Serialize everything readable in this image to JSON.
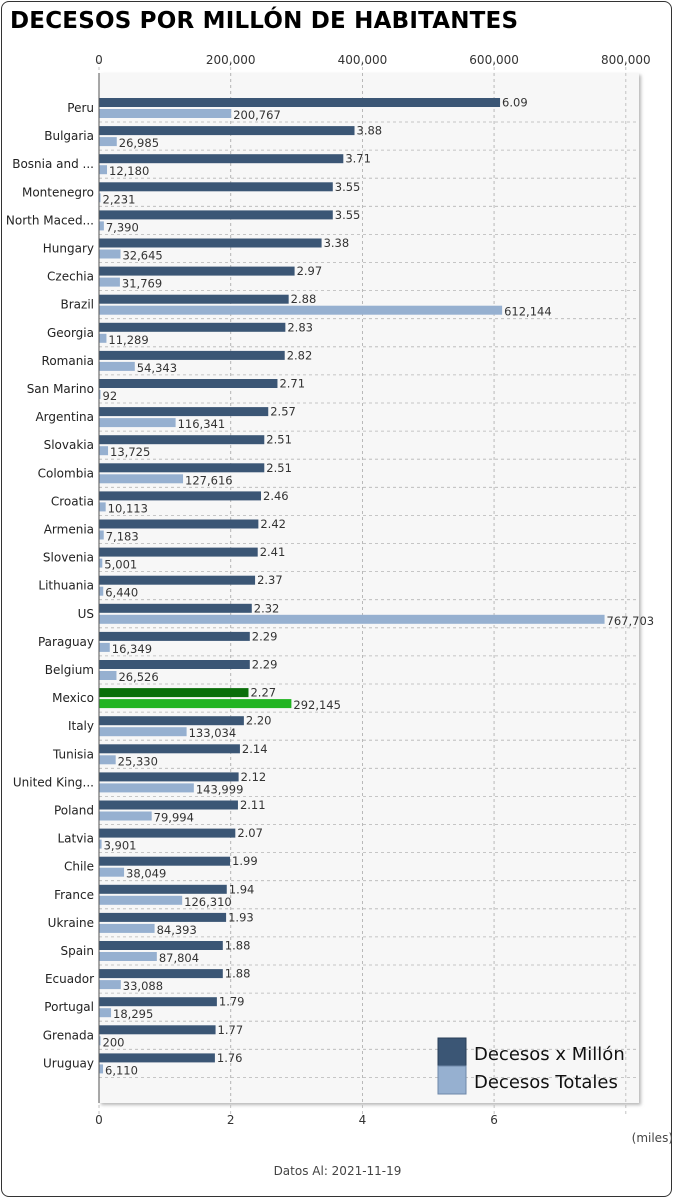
{
  "title": "DECESOS POR MILLÓN DE HABITANTES",
  "footer": "Datos Al: 2021-11-19",
  "colors": {
    "per_million": "#3b5675",
    "total": "#96b0d0",
    "highlight_per_million": "#0a6e0a",
    "highlight_total": "#21b421",
    "plot_bg": "#f7f7f7",
    "grid": "#b5b5b5"
  },
  "chart_data": {
    "type": "bar",
    "orientation": "horizontal",
    "highlight": "Mexico",
    "categories": [
      "Peru",
      "Bulgaria",
      "Bosnia and ...",
      "Montenegro",
      "North Maced...",
      "Hungary",
      "Czechia",
      "Brazil",
      "Georgia",
      "Romania",
      "San Marino",
      "Argentina",
      "Slovakia",
      "Colombia",
      "Croatia",
      "Armenia",
      "Slovenia",
      "Lithuania",
      "US",
      "Paraguay",
      "Belgium",
      "Mexico",
      "Italy",
      "Tunisia",
      "United King...",
      "Poland",
      "Latvia",
      "Chile",
      "France",
      "Ukraine",
      "Spain",
      "Ecuador",
      "Portugal",
      "Grenada",
      "Uruguay"
    ],
    "series": [
      {
        "name": "Decesos x Millón",
        "axis": "bottom",
        "values": [
          6.09,
          3.88,
          3.71,
          3.55,
          3.55,
          3.38,
          2.97,
          2.88,
          2.83,
          2.82,
          2.71,
          2.57,
          2.51,
          2.51,
          2.46,
          2.42,
          2.41,
          2.37,
          2.32,
          2.29,
          2.29,
          2.27,
          2.2,
          2.14,
          2.12,
          2.11,
          2.07,
          1.99,
          1.94,
          1.93,
          1.88,
          1.88,
          1.79,
          1.77,
          1.76
        ],
        "labels": [
          "6.09",
          "3.88",
          "3.71",
          "3.55",
          "3.55",
          "3.38",
          "2.97",
          "2.88",
          "2.83",
          "2.82",
          "2.71",
          "2.57",
          "2.51",
          "2.51",
          "2.46",
          "2.42",
          "2.41",
          "2.37",
          "2.32",
          "2.29",
          "2.29",
          "2.27",
          "2.20",
          "2.14",
          "2.12",
          "2.11",
          "2.07",
          "1.99",
          "1.94",
          "1.93",
          "1.88",
          "1.88",
          "1.79",
          "1.77",
          "1.76"
        ]
      },
      {
        "name": "Decesos Totales",
        "axis": "top",
        "values": [
          200767,
          26985,
          12180,
          2231,
          7390,
          32645,
          31769,
          612144,
          11289,
          54343,
          92,
          116341,
          13725,
          127616,
          10113,
          7183,
          5001,
          6440,
          767703,
          16349,
          26526,
          292145,
          133034,
          25330,
          143999,
          79994,
          3901,
          38049,
          126310,
          84393,
          87804,
          33088,
          18295,
          200,
          6110
        ],
        "labels": [
          "200,767",
          "26,985",
          "12,180",
          "2,231",
          "7,390",
          "32,645",
          "31,769",
          "612,144",
          "11,289",
          "54,343",
          "92",
          "116,341",
          "13,725",
          "127,616",
          "10,113",
          "7,183",
          "5,001",
          "6,440",
          "767,703",
          "16,349",
          "26,526",
          "292,145",
          "133,034",
          "25,330",
          "143,999",
          "79,994",
          "3,901",
          "38,049",
          "126,310",
          "84,393",
          "87,804",
          "33,088",
          "18,295",
          "200",
          "6,110"
        ]
      }
    ],
    "top_axis": {
      "range": [
        0,
        820000
      ],
      "ticks": [
        0,
        200000,
        400000,
        600000,
        800000
      ],
      "tick_labels": [
        "0",
        "200,000",
        "400,000",
        "600,000",
        "800,000"
      ]
    },
    "bottom_axis": {
      "range": [
        0,
        8.2
      ],
      "ticks": [
        0,
        2,
        4,
        6
      ],
      "tick_labels": [
        "0",
        "2",
        "4",
        "6"
      ],
      "unit_label": "(miles)"
    },
    "grid": true,
    "legend_position": "bottom-right"
  }
}
